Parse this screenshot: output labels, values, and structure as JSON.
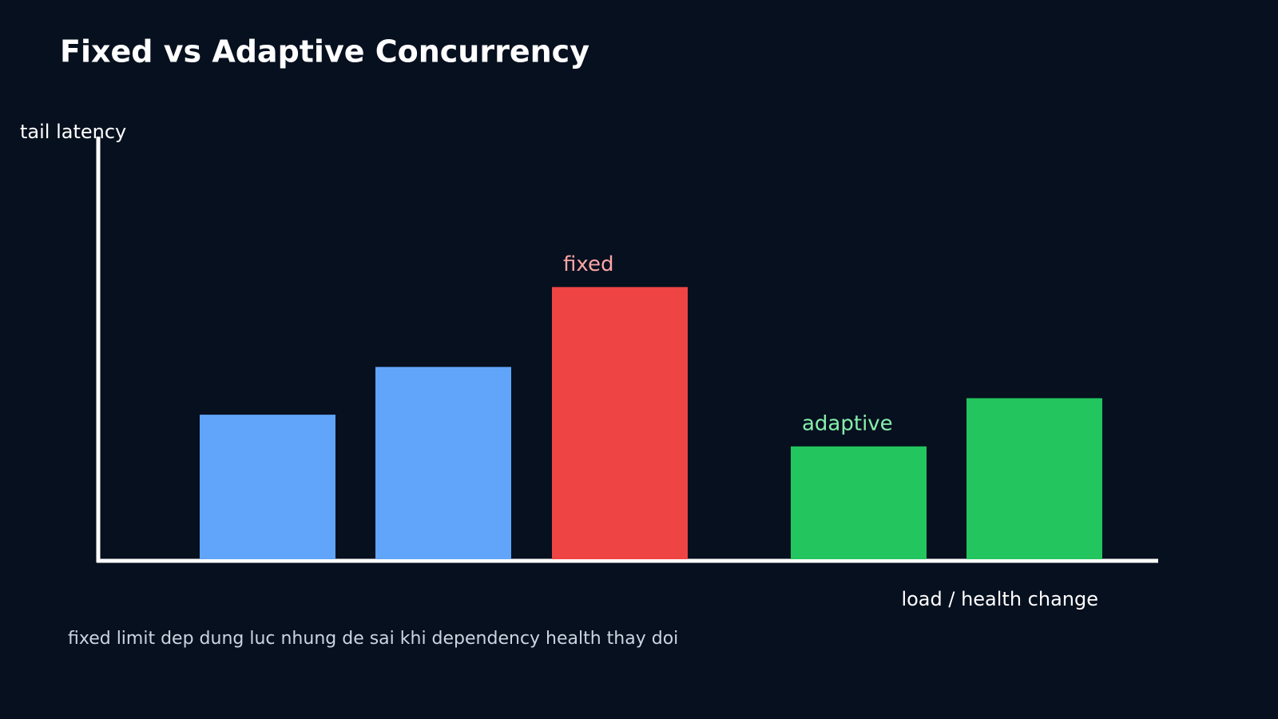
{
  "chart_data": {
    "type": "bar",
    "title": "Fixed vs Adaptive Concurrency",
    "y_label": "tail latency",
    "x_label": "load / health change",
    "footnote": "fixed limit dep dung luc nhung de sai khi dependency health thay doi",
    "categories": [
      null,
      null,
      null,
      null,
      null
    ],
    "values": [
      34.2,
      45.5,
      64.4,
      26.7,
      38.1
    ],
    "colors": [
      "#60a5fa",
      "#60a5fa",
      "#ef4444",
      "#22c55e",
      "#22c55e"
    ],
    "ylim": [
      0,
      100
    ],
    "annotations": [
      {
        "text": "fixed",
        "color": "#fca5a5"
      },
      {
        "text": "adaptive",
        "color": "#86efac"
      }
    ]
  }
}
